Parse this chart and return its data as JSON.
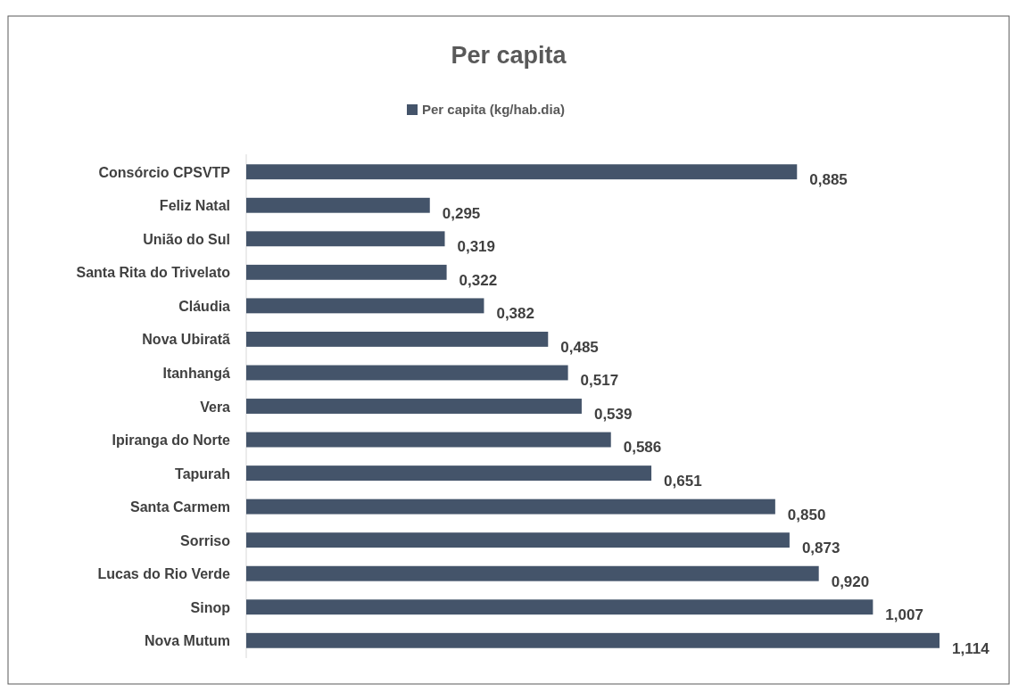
{
  "chart_data": {
    "type": "bar",
    "orientation": "horizontal",
    "title": "Per capita",
    "legend": "top",
    "categories": [
      "Consórcio CPSVTP",
      "Feliz Natal",
      "União do Sul",
      "Santa Rita do Trivelato",
      "Cláudia",
      "Nova Ubiratã",
      "Itanhangá",
      "Vera",
      "Ipiranga do Norte",
      "Tapurah",
      "Santa Carmem",
      "Sorriso",
      "Lucas do Rio Verde",
      "Sinop",
      "Nova Mutum"
    ],
    "series": [
      {
        "name": "Per capita (kg/hab.dia)",
        "color": "#44546a",
        "values": [
          0.885,
          0.295,
          0.319,
          0.322,
          0.382,
          0.485,
          0.517,
          0.539,
          0.586,
          0.651,
          0.85,
          0.873,
          0.92,
          1.007,
          1.114
        ],
        "value_labels": [
          "0,885",
          "0,295",
          "0,319",
          "0,322",
          "0,382",
          "0,485",
          "0,517",
          "0,539",
          "0,586",
          "0,651",
          "0,850",
          "0,873",
          "0,920",
          "1,007",
          "1,114"
        ]
      }
    ]
  }
}
